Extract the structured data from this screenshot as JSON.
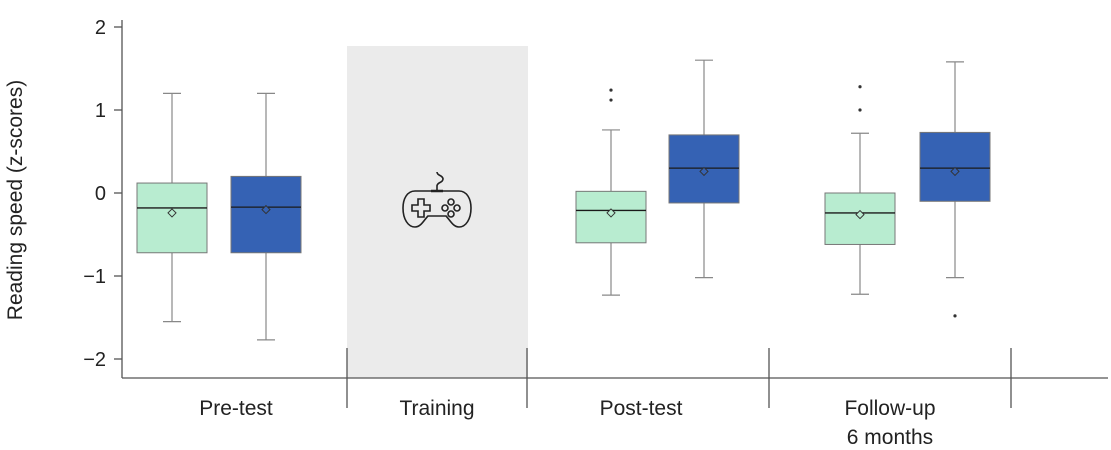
{
  "chart_data": {
    "type": "box",
    "ylabel": "Reading speed (z-scores)",
    "xlabel": "",
    "ylim": [
      -2.2,
      2.2
    ],
    "yticks": [
      "2",
      "1",
      "0",
      "−1",
      "−2"
    ],
    "ytick_values": [
      2,
      1,
      0,
      -1,
      -2
    ],
    "categories": [
      {
        "label": "Pre-test",
        "label2": ""
      },
      {
        "label": "Training",
        "label2": ""
      },
      {
        "label": "Post-test",
        "label2": ""
      },
      {
        "label": "Follow-up",
        "label2": "6 months"
      }
    ],
    "training_icon": "gamepad-icon",
    "colors": {
      "group_a": "#b8ecd0",
      "group_b": "#3562b4",
      "training_band": "#ebebeb",
      "axis": "#555555"
    },
    "boxes": [
      {
        "category": "Pre-test",
        "group": "a",
        "whisker_low": -1.55,
        "q1": -0.72,
        "median": -0.18,
        "q3": 0.12,
        "whisker_high": 1.2,
        "mean": -0.24,
        "outliers": []
      },
      {
        "category": "Pre-test",
        "group": "b",
        "whisker_low": -1.77,
        "q1": -0.72,
        "median": -0.17,
        "q3": 0.2,
        "whisker_high": 1.2,
        "mean": -0.2,
        "outliers": []
      },
      {
        "category": "Post-test",
        "group": "a",
        "whisker_low": -1.23,
        "q1": -0.6,
        "median": -0.21,
        "q3": 0.02,
        "whisker_high": 0.76,
        "mean": -0.24,
        "outliers": [
          1.12,
          1.24
        ]
      },
      {
        "category": "Post-test",
        "group": "b",
        "whisker_low": -1.02,
        "q1": -0.12,
        "median": 0.3,
        "q3": 0.7,
        "whisker_high": 1.6,
        "mean": 0.26,
        "outliers": []
      },
      {
        "category": "Follow-up 6 months",
        "group": "a",
        "whisker_low": -1.22,
        "q1": -0.62,
        "median": -0.24,
        "q3": 0.0,
        "whisker_high": 0.72,
        "mean": -0.26,
        "outliers": [
          1.0,
          1.28
        ]
      },
      {
        "category": "Follow-up 6 months",
        "group": "b",
        "whisker_low": -1.02,
        "q1": -0.1,
        "median": 0.3,
        "q3": 0.73,
        "whisker_high": 1.58,
        "mean": 0.26,
        "outliers": [
          -1.48
        ]
      }
    ]
  }
}
